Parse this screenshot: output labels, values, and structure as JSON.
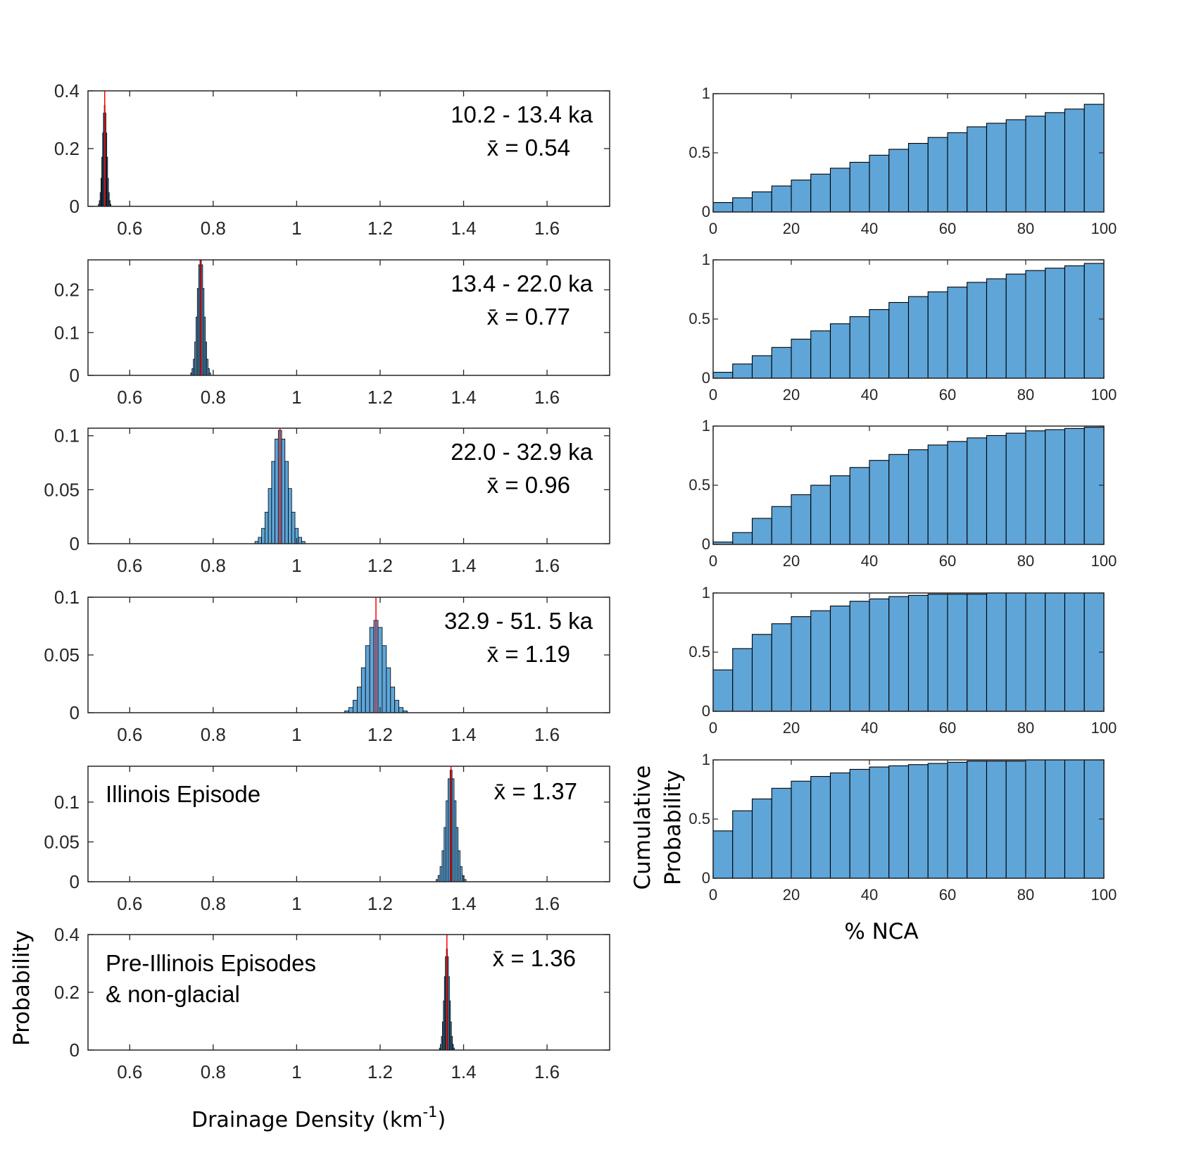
{
  "left_panels": {
    "xlabel": "Drainage Density (km",
    "xlabel_sup": "-1",
    "xlabel_close": ")",
    "ylabel": "Probability",
    "x_ticks": [
      "0.6",
      "0.8",
      "1",
      "1.2",
      "1.4",
      "1.6"
    ]
  },
  "right_panels": {
    "xlabel": "% NCA",
    "ylabel_line1": "Cumulative",
    "ylabel_line2": "Probability",
    "x_ticks": [
      "0",
      "20",
      "40",
      "60",
      "80",
      "100"
    ],
    "y_ticks": [
      "0",
      "0.5",
      "1"
    ]
  },
  "colors": {
    "bar_fill": "#5fa5d8",
    "bar_edge": "#000000",
    "mean_line": "#ff0000",
    "axis": "#262626"
  },
  "chart_data": [
    {
      "type": "bar",
      "panel": "left-1",
      "title": "10.2 - 13.4 ka",
      "mean_label": "x̄ = 0.54",
      "mean": 0.54,
      "sd": 0.005,
      "peak": 0.35,
      "xlim": [
        0.5,
        1.75
      ],
      "ylim": [
        0,
        0.4
      ],
      "y_ticks": [
        "0",
        "0.2",
        "0.4"
      ],
      "xlabel": "",
      "ylabel": ""
    },
    {
      "type": "bar",
      "panel": "left-2",
      "title": "13.4 - 22.0 ka",
      "mean_label": "x̄ = 0.77",
      "mean": 0.77,
      "sd": 0.008,
      "peak": 0.28,
      "xlim": [
        0.5,
        1.75
      ],
      "ylim": [
        0,
        0.27
      ],
      "y_ticks": [
        "0",
        "0.1",
        "0.2"
      ],
      "xlabel": "",
      "ylabel": ""
    },
    {
      "type": "bar",
      "panel": "left-3",
      "title": "22.0 - 32.9 ka",
      "mean_label": "x̄ = 0.96",
      "mean": 0.96,
      "sd": 0.02,
      "peak": 0.105,
      "xlim": [
        0.5,
        1.75
      ],
      "ylim": [
        0,
        0.107
      ],
      "y_ticks": [
        "0",
        "0.05",
        "0.1"
      ],
      "xlabel": "",
      "ylabel": ""
    },
    {
      "type": "bar",
      "panel": "left-4",
      "title": "32.9 - 51. 5 ka",
      "mean_label": "x̄ = 1.19",
      "mean": 1.19,
      "sd": 0.025,
      "peak": 0.08,
      "xlim": [
        0.5,
        1.75
      ],
      "ylim": [
        0,
        0.1
      ],
      "y_ticks": [
        "0",
        "0.05",
        "0.1"
      ],
      "xlabel": "",
      "ylabel": ""
    },
    {
      "type": "bar",
      "panel": "left-5",
      "title": "Illinois Episode",
      "mean_label": "x̄ = 1.37",
      "mean": 1.37,
      "sd": 0.012,
      "peak": 0.14,
      "xlim": [
        0.5,
        1.75
      ],
      "ylim": [
        0,
        0.145
      ],
      "y_ticks": [
        "0",
        "0.05",
        "0.1"
      ],
      "xlabel": "",
      "ylabel": ""
    },
    {
      "type": "bar",
      "panel": "left-6",
      "title": "Pre-Illinois Episodes",
      "title2": "& non-glacial",
      "mean_label": "x̄ = 1.36",
      "mean": 1.36,
      "sd": 0.006,
      "peak": 0.35,
      "xlim": [
        0.5,
        1.75
      ],
      "ylim": [
        0,
        0.4
      ],
      "y_ticks": [
        "0",
        "0.2",
        "0.4"
      ],
      "xlabel": "",
      "ylabel": ""
    },
    {
      "type": "bar",
      "panel": "right-1",
      "xlim": [
        0,
        100
      ],
      "ylim": [
        0,
        1
      ],
      "xlabel": "",
      "ylabel": "",
      "values": [
        0.08,
        0.12,
        0.17,
        0.22,
        0.27,
        0.32,
        0.37,
        0.42,
        0.48,
        0.53,
        0.58,
        0.63,
        0.67,
        0.72,
        0.75,
        0.78,
        0.81,
        0.84,
        0.87,
        0.91
      ]
    },
    {
      "type": "bar",
      "panel": "right-2",
      "xlim": [
        0,
        100
      ],
      "ylim": [
        0,
        1
      ],
      "xlabel": "",
      "ylabel": "",
      "values": [
        0.05,
        0.12,
        0.19,
        0.26,
        0.33,
        0.4,
        0.46,
        0.52,
        0.58,
        0.64,
        0.69,
        0.73,
        0.77,
        0.81,
        0.84,
        0.88,
        0.91,
        0.93,
        0.95,
        0.97
      ]
    },
    {
      "type": "bar",
      "panel": "right-3",
      "xlim": [
        0,
        100
      ],
      "ylim": [
        0,
        1
      ],
      "xlabel": "",
      "ylabel": "",
      "values": [
        0.02,
        0.1,
        0.22,
        0.32,
        0.42,
        0.5,
        0.58,
        0.65,
        0.71,
        0.76,
        0.8,
        0.84,
        0.87,
        0.9,
        0.92,
        0.94,
        0.96,
        0.97,
        0.98,
        0.99
      ]
    },
    {
      "type": "bar",
      "panel": "right-4",
      "xlim": [
        0,
        100
      ],
      "ylim": [
        0,
        1
      ],
      "xlabel": "",
      "ylabel": "",
      "values": [
        0.35,
        0.53,
        0.65,
        0.74,
        0.8,
        0.85,
        0.89,
        0.93,
        0.95,
        0.97,
        0.98,
        0.99,
        0.99,
        0.99,
        1.0,
        1.0,
        1.0,
        1.0,
        1.0,
        1.0
      ]
    },
    {
      "type": "bar",
      "panel": "right-5",
      "xlim": [
        0,
        100
      ],
      "ylim": [
        0,
        1
      ],
      "xlabel": "",
      "ylabel": "",
      "values": [
        0.4,
        0.57,
        0.67,
        0.76,
        0.82,
        0.86,
        0.89,
        0.92,
        0.94,
        0.95,
        0.96,
        0.97,
        0.98,
        0.99,
        0.99,
        0.99,
        1.0,
        1.0,
        1.0,
        1.0
      ]
    }
  ]
}
